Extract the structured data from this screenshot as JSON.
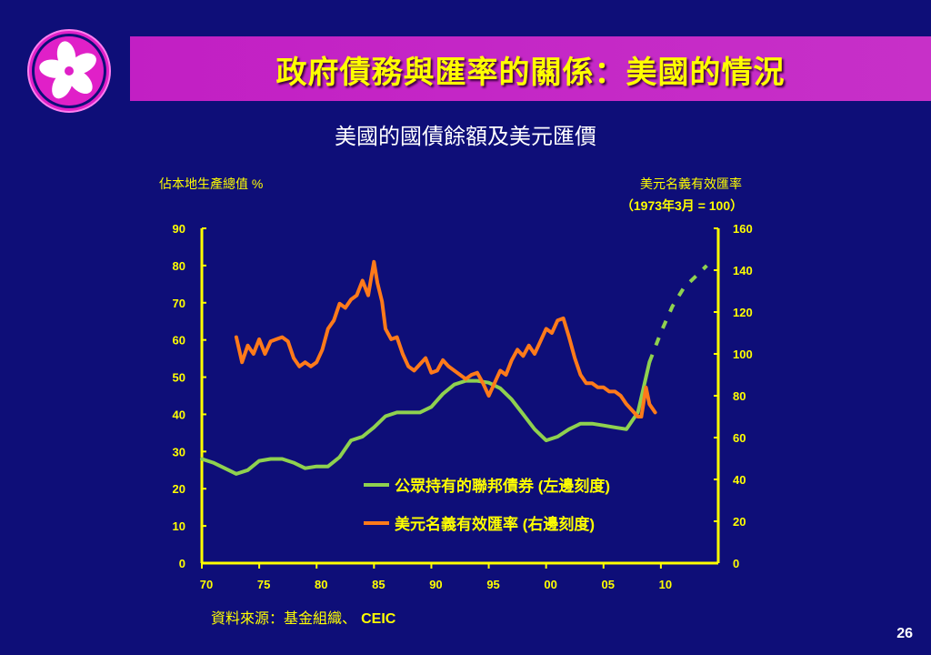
{
  "title": "政府債務與匯率的關係：美國的情況",
  "page_number": "26",
  "source_label": "資料來源：基金組織、",
  "source_name": "CEIC",
  "colors": {
    "background": "#0e0e78",
    "title_bar": "#c21fc4",
    "title_text": "#ffff00",
    "axis": "#ffff00",
    "debt_series": "#8fd14f",
    "fx_series": "#ff7a1a"
  },
  "chart_data": {
    "type": "line",
    "title": "美國的國債餘額及美元匯價",
    "ylabel_left": "佔本地生產總值 %",
    "ylabel_right_line1": "美元名義有效匯率",
    "ylabel_right_line2": "（1973年3月 = 100）",
    "left_ylim": [
      0,
      90
    ],
    "right_ylim": [
      0,
      160
    ],
    "xlim": [
      1970,
      2015
    ],
    "left_ticks": [
      "0",
      "10",
      "20",
      "30",
      "40",
      "50",
      "60",
      "70",
      "80",
      "90"
    ],
    "right_ticks": [
      "0",
      "20",
      "40",
      "60",
      "80",
      "100",
      "120",
      "140",
      "160"
    ],
    "x_ticks": [
      {
        "value": 1970,
        "label": "70"
      },
      {
        "value": 1975,
        "label": "75"
      },
      {
        "value": 1980,
        "label": "80"
      },
      {
        "value": 1985,
        "label": "85"
      },
      {
        "value": 1990,
        "label": "90"
      },
      {
        "value": 1995,
        "label": "95"
      },
      {
        "value": 2000,
        "label": "00"
      },
      {
        "value": 2005,
        "label": "05"
      },
      {
        "value": 2010,
        "label": "10"
      }
    ],
    "legend": [
      {
        "series": "debt",
        "label": "公眾持有的聯邦債券 (左邊刻度)"
      },
      {
        "series": "fx",
        "label": "美元名義有效匯率 (右邊刻度)"
      }
    ],
    "series": [
      {
        "id": "debt",
        "name": "公眾持有的聯邦債券 (左邊刻度)",
        "axis": "left",
        "color": "#8fd14f",
        "x": [
          1970,
          1971,
          1972,
          1973,
          1974,
          1975,
          1976,
          1977,
          1978,
          1979,
          1980,
          1981,
          1982,
          1983,
          1984,
          1985,
          1986,
          1987,
          1988,
          1989,
          1990,
          1991,
          1992,
          1993,
          1994,
          1995,
          1996,
          1997,
          1998,
          1999,
          2000,
          2001,
          2002,
          2003,
          2004,
          2005,
          2006,
          2007,
          2008,
          2009
        ],
        "y": [
          28.0,
          27.0,
          25.5,
          24.0,
          25.0,
          27.5,
          28.0,
          28.0,
          27.0,
          25.5,
          26.0,
          26.0,
          28.5,
          33.0,
          34.0,
          36.5,
          39.5,
          40.5,
          40.5,
          40.5,
          42.0,
          45.5,
          48.0,
          49.0,
          49.0,
          48.5,
          47.0,
          44.0,
          40.0,
          36.0,
          33.0,
          34.0,
          36.0,
          37.5,
          37.5,
          37.0,
          36.5,
          36.0,
          40.5,
          54.0
        ],
        "projection_x": [
          2009,
          2010,
          2011,
          2012,
          2013,
          2014
        ],
        "projection_y": [
          54.0,
          62.0,
          69.0,
          74.0,
          77.0,
          80.0
        ]
      },
      {
        "id": "fx",
        "name": "美元名義有效匯率 (右邊刻度)",
        "axis": "right",
        "color": "#ff7a1a",
        "x": [
          1973.0,
          1973.5,
          1974.0,
          1974.5,
          1975.0,
          1975.5,
          1976.0,
          1976.5,
          1977.0,
          1977.5,
          1978.0,
          1978.5,
          1979.0,
          1979.5,
          1980.0,
          1980.5,
          1981.0,
          1981.5,
          1982.0,
          1982.5,
          1983.0,
          1983.5,
          1984.0,
          1984.5,
          1985.0,
          1985.3,
          1985.7,
          1986.0,
          1986.5,
          1987.0,
          1987.5,
          1988.0,
          1988.5,
          1989.0,
          1989.5,
          1990.0,
          1990.5,
          1991.0,
          1991.5,
          1992.0,
          1992.5,
          1993.0,
          1993.5,
          1994.0,
          1994.5,
          1995.0,
          1995.5,
          1996.0,
          1996.5,
          1997.0,
          1997.5,
          1998.0,
          1998.5,
          1999.0,
          1999.5,
          2000.0,
          2000.5,
          2001.0,
          2001.5,
          2002.0,
          2002.5,
          2003.0,
          2003.5,
          2004.0,
          2004.5,
          2005.0,
          2005.5,
          2006.0,
          2006.5,
          2007.0,
          2007.5,
          2008.0,
          2008.3,
          2008.7,
          2009.0,
          2009.5
        ],
        "y": [
          108,
          96,
          104,
          100,
          107,
          100,
          106,
          107,
          108,
          106,
          98,
          94,
          96,
          94,
          96,
          102,
          112,
          116,
          124,
          122,
          126,
          128,
          135,
          128,
          144,
          134,
          125,
          112,
          107,
          108,
          100,
          94,
          92,
          95,
          98,
          91,
          92,
          97,
          94,
          92,
          90,
          88,
          90,
          91,
          86,
          80,
          86,
          92,
          90,
          97,
          102,
          99,
          104,
          100,
          106,
          112,
          110,
          116,
          117,
          108,
          98,
          90,
          86,
          86,
          84,
          84,
          82,
          82,
          80,
          76,
          73,
          70,
          70,
          84,
          76,
          72
        ]
      }
    ]
  }
}
